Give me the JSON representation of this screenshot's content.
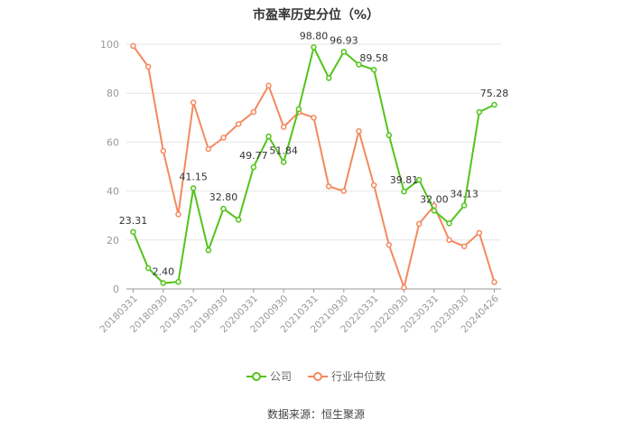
{
  "chart_data": {
    "type": "line",
    "title": "市盈率历史分位（%）",
    "x": [
      "20180331",
      "20180630",
      "20180930",
      "20181231",
      "20190331",
      "20190630",
      "20190930",
      "20191231",
      "20200331",
      "20200630",
      "20200930",
      "20201231",
      "20210331",
      "20210630",
      "20210930",
      "20211231",
      "20220331",
      "20220630",
      "20220930",
      "20221231",
      "20230331",
      "20230630",
      "20230930",
      "20231231",
      "20240426"
    ],
    "x_tick_labels": [
      "20180331",
      "20180930",
      "20190331",
      "20190930",
      "20200331",
      "20200930",
      "20210331",
      "20210930",
      "20220331",
      "20220930",
      "20230331",
      "20230930",
      "20240426"
    ],
    "y_ticks": [
      "0",
      "20",
      "40",
      "60",
      "80",
      "100"
    ],
    "ylim": [
      0,
      100
    ],
    "grid": "horizontal",
    "legend_position": "bottom",
    "series": [
      {
        "name": "公司",
        "color": "#52c41a",
        "values": [
          23.31,
          8.5,
          2.4,
          2.9,
          41.15,
          15.8,
          32.8,
          28.3,
          49.77,
          62.3,
          51.84,
          73.5,
          98.8,
          86.2,
          96.93,
          91.7,
          89.58,
          62.8,
          39.81,
          44.6,
          32.0,
          26.8,
          34.13,
          72.3,
          75.28
        ],
        "labels": {
          "0": "23.31",
          "2": "2.40",
          "4": "41.15",
          "6": "32.80",
          "8": "49.77",
          "10": "51.84",
          "12": "98.80",
          "14": "96.93",
          "16": "89.58",
          "18": "39.81",
          "20": "32.00",
          "22": "34.13",
          "24": "75.28"
        }
      },
      {
        "name": "行业中位数",
        "color": "#f4895f",
        "values": [
          99.3,
          90.8,
          56.4,
          30.5,
          76.2,
          57.2,
          61.8,
          67.4,
          72.3,
          83.1,
          66.2,
          72.2,
          70.0,
          41.9,
          40.0,
          64.5,
          42.4,
          18.0,
          0.6,
          26.6,
          34.0,
          20.0,
          17.4,
          22.9,
          2.8
        ]
      }
    ]
  },
  "legend": {
    "company": "公司",
    "industry": "行业中位数"
  },
  "source": "数据来源：恒生聚源"
}
